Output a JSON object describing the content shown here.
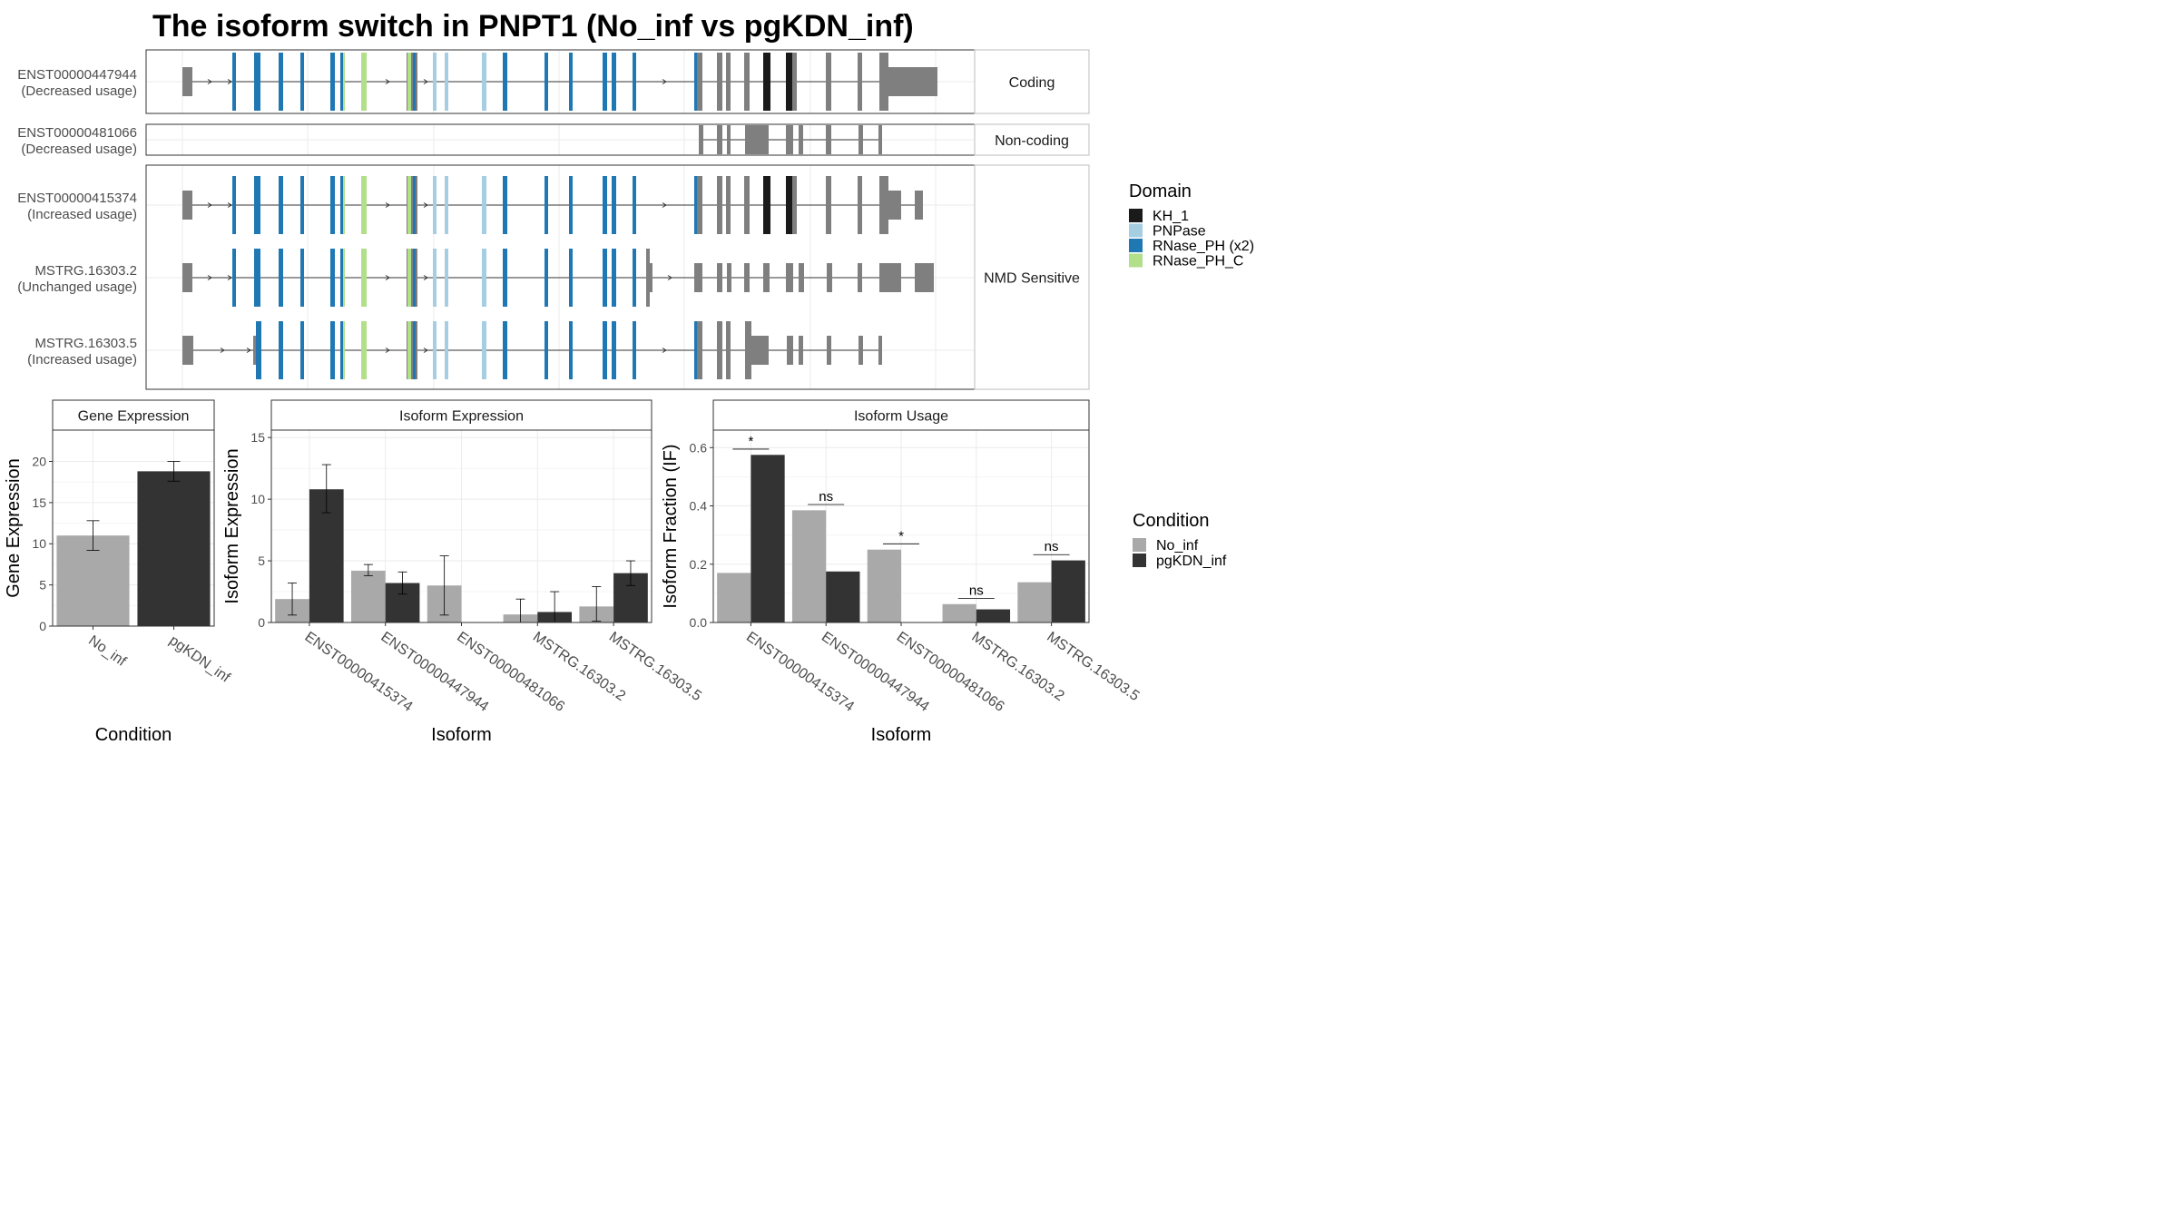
{
  "title": "The isoform switch in PNPT1 (No_inf vs pgKDN_inf)",
  "transcripts": [
    {
      "name": "ENST00000447944",
      "usage": "(Decreased usage)",
      "group": "Coding"
    },
    {
      "name": "ENST00000481066",
      "usage": "(Decreased usage)",
      "group": "Non-coding"
    },
    {
      "name": "ENST00000415374",
      "usage": "(Increased usage)",
      "group": "NMD Sensitive"
    },
    {
      "name": "MSTRG.16303.2",
      "usage": "(Unchanged usage)",
      "group": "NMD Sensitive"
    },
    {
      "name": "MSTRG.16303.5",
      "usage": "(Increased usage)",
      "group": "NMD Sensitive"
    }
  ],
  "structure_groups": [
    "Coding",
    "Non-coding",
    "NMD Sensitive"
  ],
  "domain_legend": {
    "title": "Domain",
    "items": [
      {
        "label": "KH_1",
        "color": "#1a1a1a"
      },
      {
        "label": "PNPase",
        "color": "#a6cee3"
      },
      {
        "label": "RNase_PH (x2)",
        "color": "#1f78b4"
      },
      {
        "label": "RNase_PH_C",
        "color": "#b2df8a"
      }
    ]
  },
  "condition_legend": {
    "title": "Condition",
    "items": [
      {
        "label": "No_inf",
        "color": "#a9a9a9"
      },
      {
        "label": "pgKDN_inf",
        "color": "#333333"
      }
    ]
  },
  "chart_data": [
    {
      "type": "bar",
      "title": "Gene Expression",
      "xlabel": "Condition",
      "ylabel": "Gene Expression",
      "ylim": [
        0,
        23.8
      ],
      "yticks": [
        0,
        5,
        10,
        15,
        20
      ],
      "categories": [
        "No_inf",
        "pgKDN_inf"
      ],
      "values": [
        11.0,
        18.8
      ],
      "errors": [
        [
          9.2,
          12.8
        ],
        [
          17.6,
          20.0
        ]
      ],
      "colors": [
        "#a9a9a9",
        "#333333"
      ]
    },
    {
      "type": "bar",
      "title": "Isoform Expression",
      "xlabel": "Isoform",
      "ylabel": "Isoform Expression",
      "ylim": [
        0,
        15.6
      ],
      "yticks": [
        0,
        5,
        10,
        15
      ],
      "categories": [
        "ENST00000415374",
        "ENST00000447944",
        "ENST00000481066",
        "MSTRG.16303.2",
        "MSTRG.16303.5"
      ],
      "series": [
        {
          "name": "No_inf",
          "values": [
            1.9,
            4.2,
            3.0,
            0.65,
            1.3
          ],
          "errors": [
            [
              0.6,
              3.2
            ],
            [
              3.8,
              4.7
            ],
            [
              0.6,
              5.4
            ],
            [
              0.0,
              1.9
            ],
            [
              0.1,
              2.9
            ]
          ]
        },
        {
          "name": "pgKDN_inf",
          "values": [
            10.8,
            3.2,
            0.0,
            0.85,
            4.0
          ],
          "errors": [
            [
              8.9,
              12.8
            ],
            [
              2.3,
              4.1
            ],
            [
              0.0,
              0.0
            ],
            [
              0.0,
              2.5
            ],
            [
              3.0,
              5.0
            ]
          ]
        }
      ]
    },
    {
      "type": "bar",
      "title": "Isoform Usage",
      "xlabel": "Isoform",
      "ylabel": "Isoform Fraction (IF)",
      "ylim": [
        0,
        0.66
      ],
      "yticks": [
        0.0,
        0.2,
        0.4,
        0.6
      ],
      "categories": [
        "ENST00000415374",
        "ENST00000447944",
        "ENST00000481066",
        "MSTRG.16303.2",
        "MSTRG.16303.5"
      ],
      "series": [
        {
          "name": "No_inf",
          "values": [
            0.17,
            0.385,
            0.25,
            0.063,
            0.138
          ]
        },
        {
          "name": "pgKDN_inf",
          "values": [
            0.575,
            0.175,
            0.0,
            0.045,
            0.213
          ]
        }
      ],
      "significance": [
        "*",
        "ns",
        "*",
        "ns",
        "ns"
      ]
    }
  ]
}
